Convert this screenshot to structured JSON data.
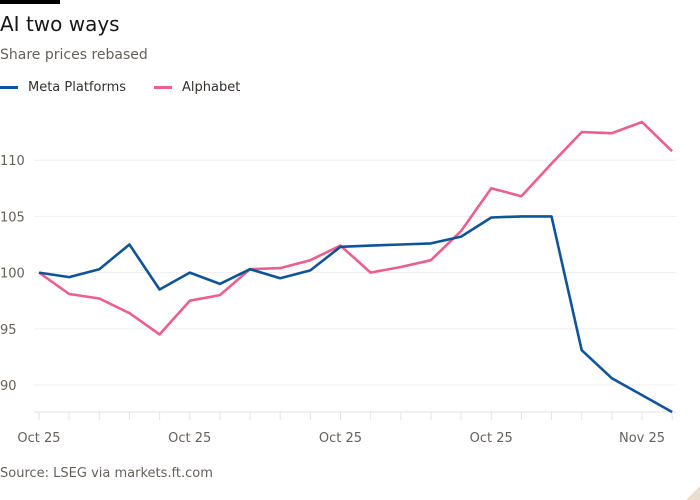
{
  "title": "AI two ways",
  "subtitle": "Share prices rebased",
  "source": "Source: LSEG via markets.ft.com",
  "chart_data": {
    "type": "line",
    "title": "AI two ways",
    "subtitle": "Share prices rebased",
    "xlabel": "",
    "ylabel": "",
    "ylim": [
      87.6,
      115
    ],
    "yticks": [
      90,
      95,
      100,
      105,
      110
    ],
    "x_tick_labels": [
      {
        "index": 0,
        "label": "Oct 25"
      },
      {
        "index": 5,
        "label": "Oct 25"
      },
      {
        "index": 10,
        "label": "Oct 25"
      },
      {
        "index": 15,
        "label": "Oct 25"
      },
      {
        "index": 20,
        "label": "Nov 25"
      }
    ],
    "grid": true,
    "legend": "top-left",
    "series": [
      {
        "name": "Meta Platforms",
        "color": "#0f5499",
        "values": [
          100,
          99.6,
          100.3,
          102.5,
          98.5,
          100,
          99.0,
          100.3,
          99.5,
          100.2,
          102.3,
          102.4,
          102.5,
          102.6,
          103.2,
          104.9,
          105.0,
          105.0,
          93.1,
          90.6,
          89.1,
          87.6
        ]
      },
      {
        "name": "Alphabet",
        "color": "#eb5e8d",
        "values": [
          100,
          98.1,
          97.7,
          96.4,
          94.5,
          97.5,
          98.0,
          100.3,
          100.4,
          101.1,
          102.4,
          100.0,
          100.5,
          101.1,
          103.7,
          107.5,
          106.8,
          109.7,
          112.5,
          112.4,
          113.4,
          110.8
        ]
      }
    ]
  }
}
